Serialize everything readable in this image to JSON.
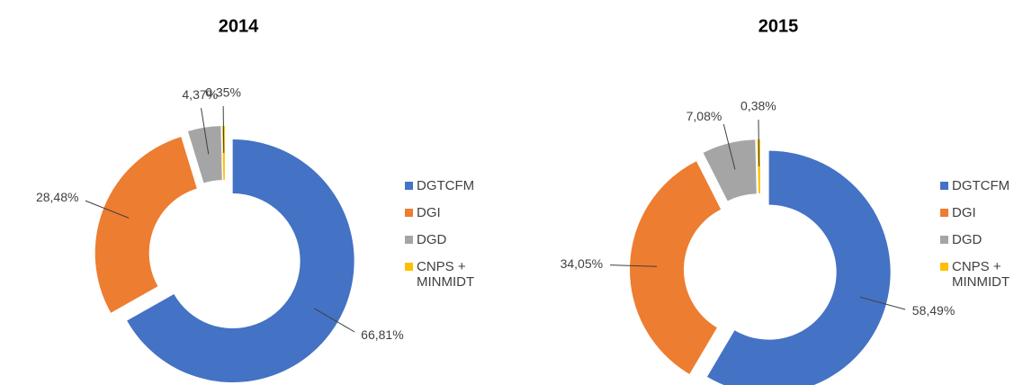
{
  "chart_data": [
    {
      "type": "donut",
      "title": "2014",
      "categories": [
        "DGTCFM",
        "DGI",
        "DGD",
        "CNPS + MINMIDT"
      ],
      "values": [
        66.81,
        28.48,
        4.37,
        0.35
      ],
      "value_labels": [
        "66,81%",
        "28,48%",
        "4,37%",
        "0,35%"
      ],
      "colors": [
        "#4472c4",
        "#ed7d31",
        "#a5a5a5",
        "#ffc000"
      ],
      "legend": "right"
    },
    {
      "type": "donut",
      "title": "2015",
      "categories": [
        "DGTCFM",
        "DGI",
        "DGD",
        "CNPS + MINMIDT"
      ],
      "values": [
        58.49,
        34.05,
        7.08,
        0.38
      ],
      "value_labels": [
        "58,49%",
        "34,05%",
        "7,08%",
        "0,38%"
      ],
      "colors": [
        "#4472c4",
        "#ed7d31",
        "#a5a5a5",
        "#ffc000"
      ],
      "legend": "right"
    }
  ]
}
